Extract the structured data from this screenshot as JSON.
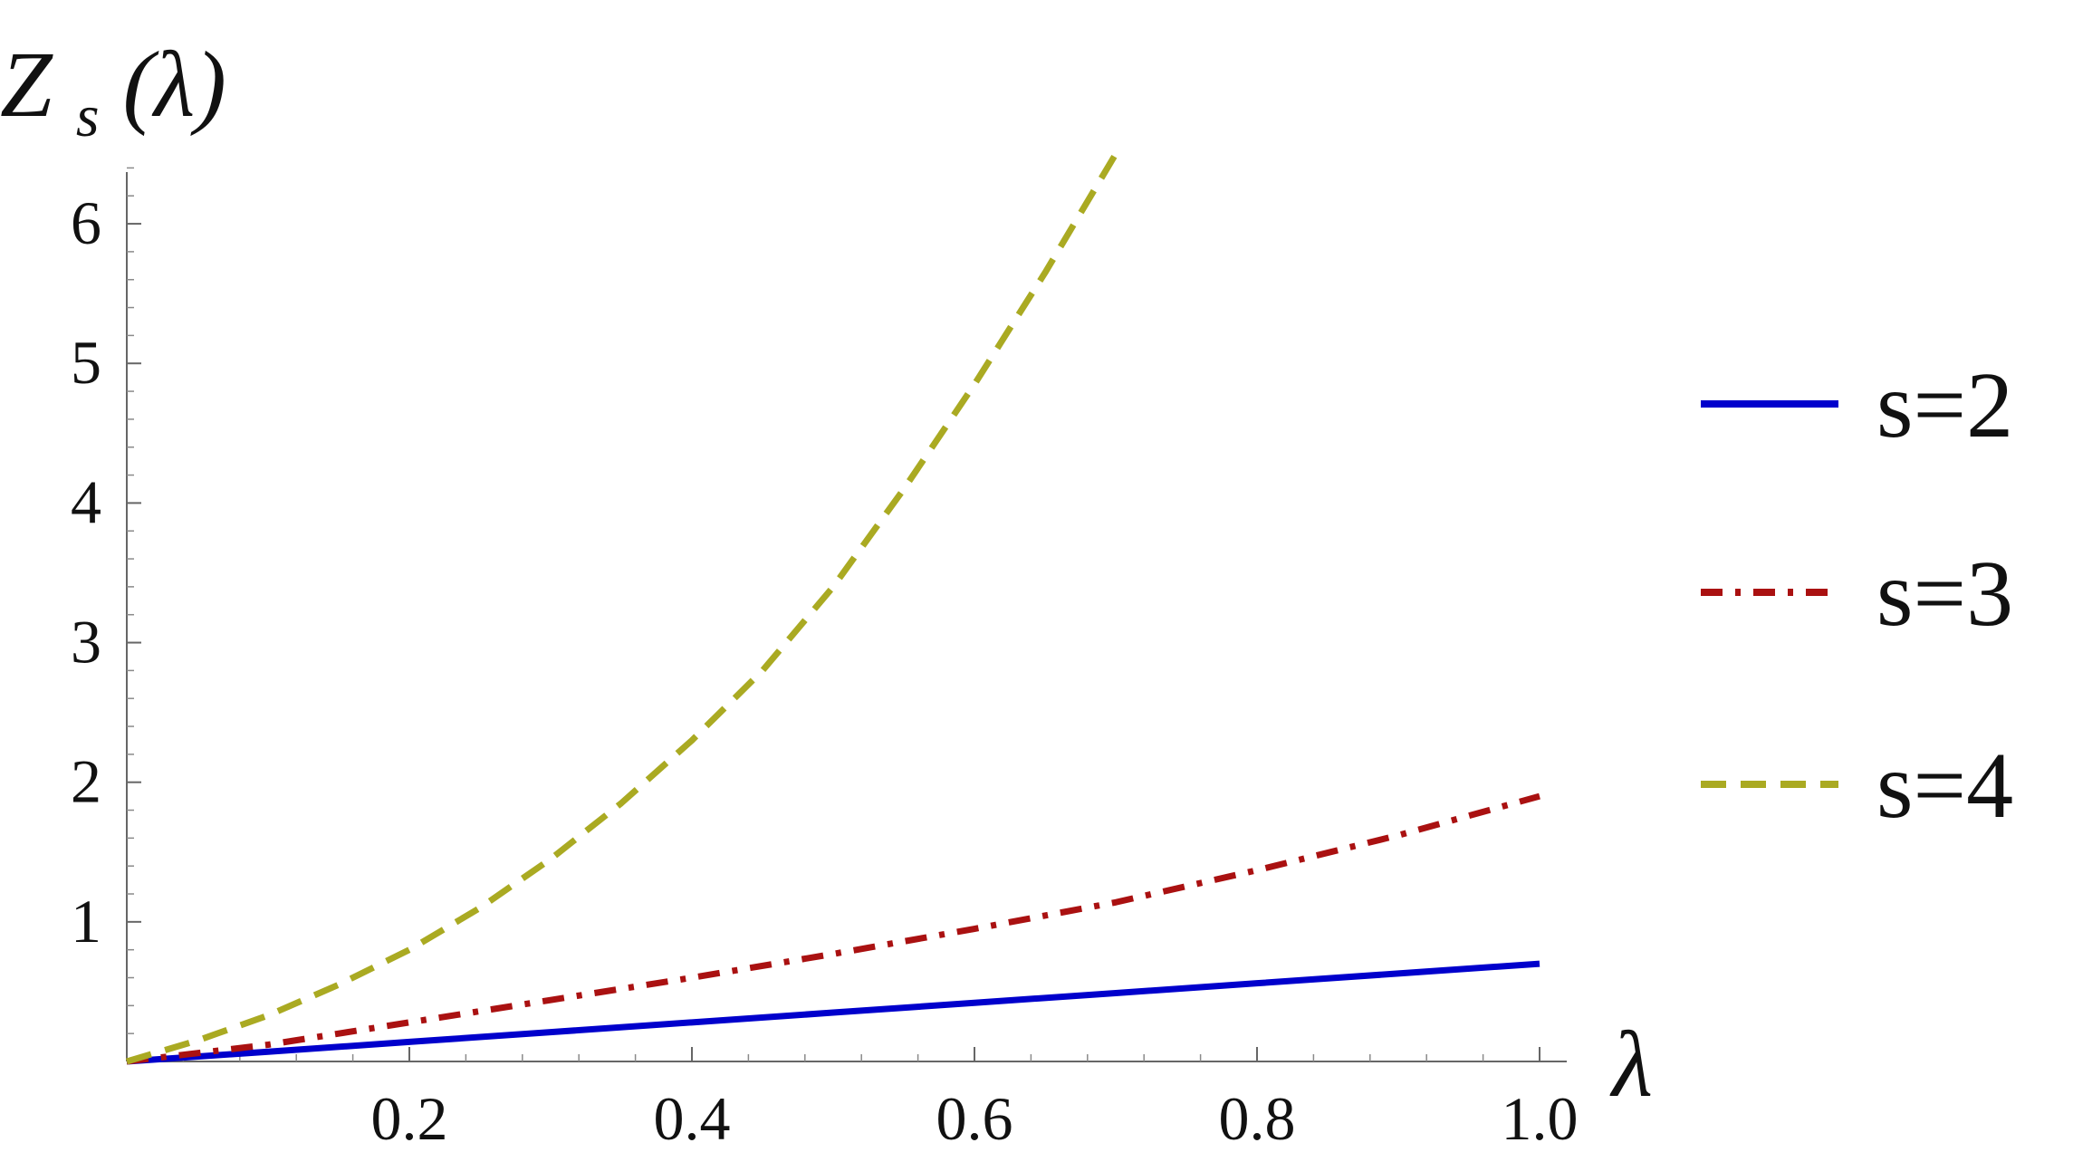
{
  "chart_data": {
    "type": "line",
    "title": "",
    "xlabel": "λ",
    "ylabel": "Z_s(λ)",
    "ylabel_main": "Z",
    "ylabel_sub": "s",
    "ylabel_arg": "(λ)",
    "xlim": [
      0,
      1.0
    ],
    "ylim": [
      0,
      6.5
    ],
    "x_ticks": [
      "0.2",
      "0.4",
      "0.6",
      "0.8",
      "1.0"
    ],
    "y_ticks": [
      "1",
      "2",
      "3",
      "4",
      "5",
      "6"
    ],
    "grid": false,
    "legend_position": "right",
    "series": [
      {
        "name": "s=2",
        "color": "#0000cc",
        "style": "solid",
        "x": [
          0,
          0.1,
          0.2,
          0.3,
          0.4,
          0.5,
          0.6,
          0.7,
          0.8,
          0.9,
          1.0
        ],
        "y": [
          0,
          0.07,
          0.14,
          0.21,
          0.28,
          0.35,
          0.42,
          0.49,
          0.56,
          0.63,
          0.7
        ]
      },
      {
        "name": "s=3",
        "color": "#aa1111",
        "style": "dashdot",
        "x": [
          0,
          0.1,
          0.2,
          0.3,
          0.4,
          0.5,
          0.6,
          0.7,
          0.8,
          0.9,
          1.0
        ],
        "y": [
          0,
          0.12,
          0.28,
          0.44,
          0.6,
          0.77,
          0.95,
          1.14,
          1.37,
          1.62,
          1.9
        ]
      },
      {
        "name": "s=4",
        "color": "#aaaa22",
        "style": "dashed",
        "x": [
          0,
          0.05,
          0.1,
          0.15,
          0.2,
          0.25,
          0.3,
          0.35,
          0.4,
          0.45,
          0.5,
          0.55,
          0.6,
          0.65,
          0.7
        ],
        "y": [
          0,
          0.15,
          0.33,
          0.55,
          0.8,
          1.1,
          1.45,
          1.85,
          2.3,
          2.8,
          3.4,
          4.1,
          4.85,
          5.65,
          6.5
        ]
      }
    ]
  }
}
